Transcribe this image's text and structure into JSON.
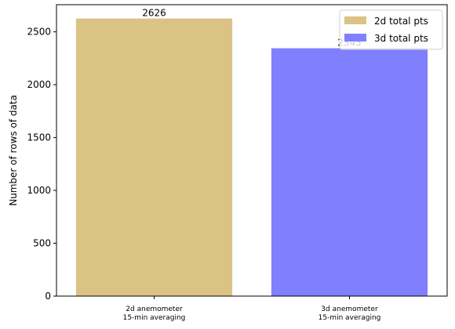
{
  "chart_data": {
    "type": "bar",
    "categories": [
      [
        "2d anemometer",
        "15-min averaging"
      ],
      [
        "3d anemometer",
        "15-min averaging"
      ]
    ],
    "series": [
      {
        "name": "2d total pts",
        "values": [
          2626,
          null
        ],
        "color": "#dbc285"
      },
      {
        "name": "3d total pts",
        "values": [
          null,
          2345
        ],
        "color": "#8080ff"
      }
    ],
    "values": [
      2626,
      2345
    ],
    "data_labels": [
      "2626",
      "2345"
    ],
    "ylabel": "Number of rows of data",
    "ylim": [
      0,
      2757
    ],
    "yticks": [
      0,
      500,
      1000,
      1500,
      2000,
      2500
    ],
    "legend_position": "top-right",
    "grid": false
  }
}
